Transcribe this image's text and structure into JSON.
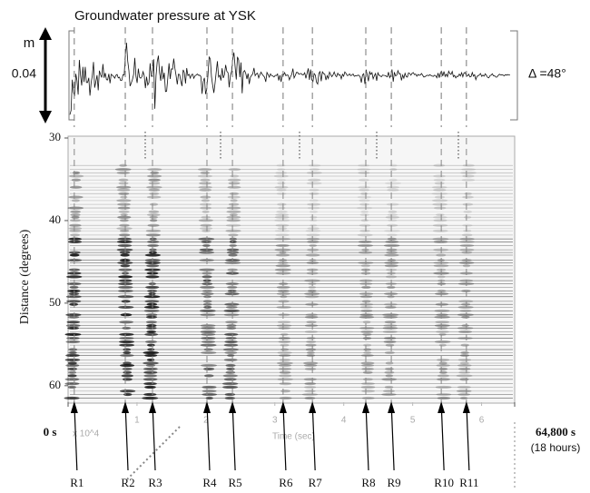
{
  "header": {
    "title": "Groundwater pressure at YSK",
    "unit_label": "m",
    "scale_label": "0.04",
    "distance_label": "Δ =48°"
  },
  "chart_data": {
    "type": "record-section",
    "ylabel": "Distance (degrees)",
    "xlabel": "Time (sec)",
    "x_multiplier": "x 10^4",
    "x_end_note": "(18 hours)",
    "xlim": [
      0,
      64800
    ],
    "ylim": [
      30,
      62
    ],
    "yticks": [
      30,
      40,
      50,
      60
    ],
    "xticks": [
      {
        "value": 0,
        "label": "0 s"
      },
      {
        "value": 64800,
        "label": "64,800 s"
      }
    ],
    "minor_xticks": [
      {
        "value": 10000,
        "label": "1"
      },
      {
        "value": 20000,
        "label": "2"
      },
      {
        "value": 30000,
        "label": "3"
      },
      {
        "value": 40000,
        "label": "4"
      },
      {
        "value": 50000,
        "label": "5"
      },
      {
        "value": 60000,
        "label": "6"
      }
    ],
    "markers": [
      {
        "name": "R1",
        "x": 900
      },
      {
        "name": "R2",
        "x": 8300
      },
      {
        "name": "R3",
        "x": 12250
      },
      {
        "name": "R4",
        "x": 20150
      },
      {
        "name": "R5",
        "x": 23850
      },
      {
        "name": "R6",
        "x": 31200
      },
      {
        "name": "R7",
        "x": 35450
      },
      {
        "name": "R8",
        "x": 43200
      },
      {
        "name": "R9",
        "x": 46900
      },
      {
        "name": "R10",
        "x": 54150
      },
      {
        "name": "R11",
        "x": 57800
      }
    ]
  }
}
